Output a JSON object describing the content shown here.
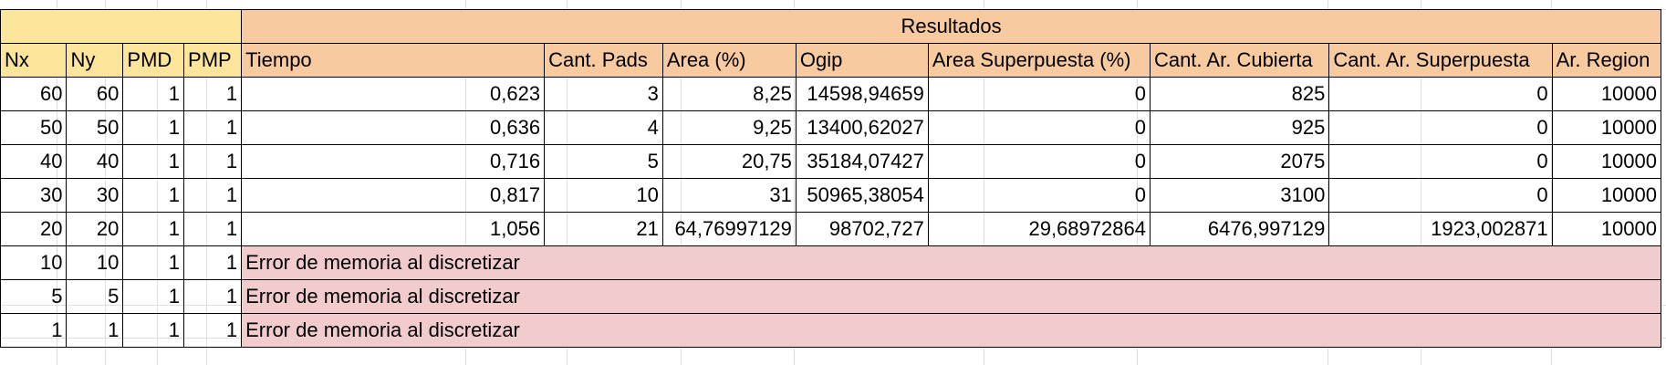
{
  "sheet": {
    "results_title": "Resultados",
    "headers": [
      "Nx",
      "Ny",
      "PMD",
      "PMP",
      "Tiempo",
      "Cant. Pads",
      "Area (%)",
      "Ogip",
      "Area Superpuesta (%)",
      "Cant. Ar. Cubierta",
      "Cant. Ar. Superpuesta",
      "Ar. Region"
    ],
    "rows": [
      [
        "60",
        "60",
        "1",
        "1",
        "0,623",
        "3",
        "8,25",
        "14598,94659",
        "0",
        "825",
        "0",
        "10000"
      ],
      [
        "50",
        "50",
        "1",
        "1",
        "0,636",
        "4",
        "9,25",
        "13400,62027",
        "0",
        "925",
        "0",
        "10000"
      ],
      [
        "40",
        "40",
        "1",
        "1",
        "0,716",
        "5",
        "20,75",
        "35184,07427",
        "0",
        "2075",
        "0",
        "10000"
      ],
      [
        "30",
        "30",
        "1",
        "1",
        "0,817",
        "10",
        "31",
        "50965,38054",
        "0",
        "3100",
        "0",
        "10000"
      ],
      [
        "20",
        "20",
        "1",
        "1",
        "1,056",
        "21",
        "64,76997129",
        "98702,727",
        "29,68972864",
        "6476,997129",
        "1923,002871",
        "10000"
      ]
    ],
    "error_rows": [
      {
        "nx": "10",
        "ny": "10",
        "pmd": "1",
        "pmp": "1",
        "message": "Error de memoria al discretizar"
      },
      {
        "nx": "5",
        "ny": "5",
        "pmd": "1",
        "pmp": "1",
        "message": "Error de memoria al discretizar"
      },
      {
        "nx": "1",
        "ny": "1",
        "pmd": "1",
        "pmp": "1",
        "message": "Error de memoria al discretizar"
      }
    ]
  },
  "colors": {
    "header_yellow": "#fde59b",
    "header_orange": "#f8ca9f",
    "error_pink": "#f2cbcc"
  }
}
